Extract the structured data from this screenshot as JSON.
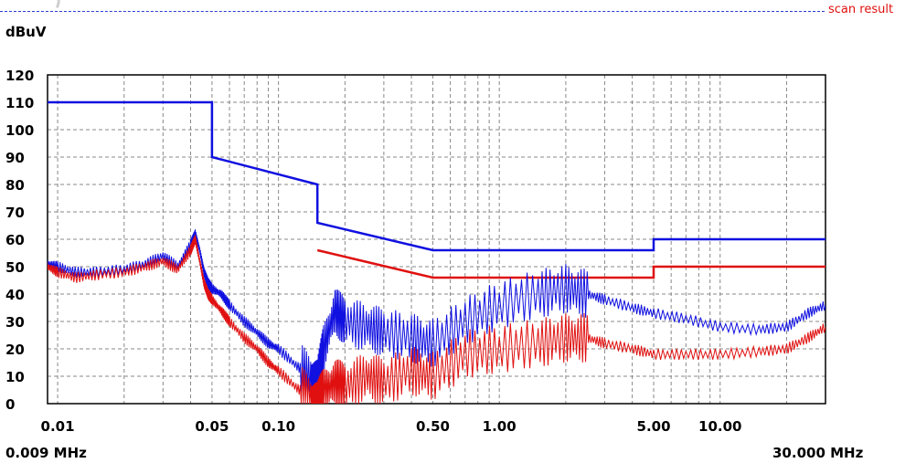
{
  "header": {
    "legend_label": "scan result"
  },
  "chart_data": {
    "type": "line",
    "title": "",
    "ylabel": "dBuV",
    "xlabel": "",
    "x_scale": "log",
    "range_start_label": "0.009 MHz",
    "range_end_label": "30.000 MHz",
    "xlim": [
      0.009,
      30
    ],
    "ylim": [
      0,
      120
    ],
    "grid": true,
    "yticks": [
      0,
      10,
      20,
      30,
      40,
      50,
      60,
      70,
      80,
      90,
      100,
      110,
      120
    ],
    "xtick_values": [
      0.01,
      0.05,
      0.1,
      0.5,
      1.0,
      5.0,
      10.0
    ],
    "xtick_labels": [
      "0.01",
      "0.05",
      "0.10",
      "0.50",
      "1.00",
      "5.00",
      "10.00"
    ],
    "colors": {
      "limit_qp": "#1010e0",
      "limit_av": "#e01010",
      "scan_qp": "#1010e0",
      "scan_av": "#e01010",
      "grid": "#888888",
      "topline": "#2a3ad0"
    },
    "series": [
      {
        "role": "limit-quasi-peak",
        "color": "#1010e0",
        "x": [
          0.009,
          0.05,
          0.05,
          0.15,
          0.15,
          0.5,
          5.0,
          5.0,
          30.0
        ],
        "y": [
          110,
          110,
          90,
          80,
          66,
          56,
          56,
          60,
          60
        ]
      },
      {
        "role": "limit-average",
        "color": "#e01010",
        "x": [
          0.15,
          0.5,
          5.0,
          5.0,
          30.0
        ],
        "y": [
          56,
          46,
          46,
          50,
          50
        ]
      },
      {
        "role": "scan-quasi-peak",
        "color": "#1010e0",
        "x": [
          0.009,
          0.01,
          0.012,
          0.015,
          0.02,
          0.025,
          0.03,
          0.035,
          0.04,
          0.042,
          0.044,
          0.046,
          0.048,
          0.05,
          0.055,
          0.06,
          0.07,
          0.08,
          0.09,
          0.1,
          0.12,
          0.14,
          0.15,
          0.16,
          0.18,
          0.2,
          0.25,
          0.3,
          0.4,
          0.5,
          0.7,
          1.0,
          1.5,
          2.0,
          2.5,
          3.0,
          4.0,
          5.0,
          7.0,
          10.0,
          15.0,
          20.0,
          25.0,
          30.0
        ],
        "y": [
          51,
          50,
          48,
          48,
          49,
          51,
          54,
          50,
          58,
          62,
          56,
          48,
          44,
          42,
          40,
          36,
          30,
          26,
          22,
          20,
          14,
          10,
          8,
          20,
          34,
          30,
          28,
          26,
          24,
          22,
          30,
          36,
          40,
          42,
          40,
          38,
          35,
          33,
          31,
          28,
          27,
          28,
          33,
          36
        ]
      },
      {
        "role": "scan-average",
        "color": "#e01010",
        "x": [
          0.009,
          0.01,
          0.012,
          0.015,
          0.02,
          0.025,
          0.03,
          0.035,
          0.04,
          0.042,
          0.044,
          0.046,
          0.048,
          0.05,
          0.055,
          0.06,
          0.07,
          0.08,
          0.09,
          0.1,
          0.12,
          0.14,
          0.15,
          0.16,
          0.18,
          0.2,
          0.25,
          0.3,
          0.4,
          0.5,
          0.7,
          1.0,
          1.5,
          2.0,
          2.5,
          3.0,
          4.0,
          5.0,
          7.0,
          10.0,
          15.0,
          20.0,
          25.0,
          30.0
        ],
        "y": [
          50,
          48,
          46,
          47,
          48,
          50,
          52,
          49,
          56,
          60,
          52,
          44,
          40,
          38,
          34,
          30,
          24,
          20,
          15,
          12,
          6,
          2,
          0,
          4,
          8,
          6,
          10,
          8,
          12,
          10,
          18,
          20,
          22,
          24,
          24,
          22,
          20,
          18,
          18,
          18,
          19,
          20,
          24,
          28
        ]
      }
    ]
  }
}
